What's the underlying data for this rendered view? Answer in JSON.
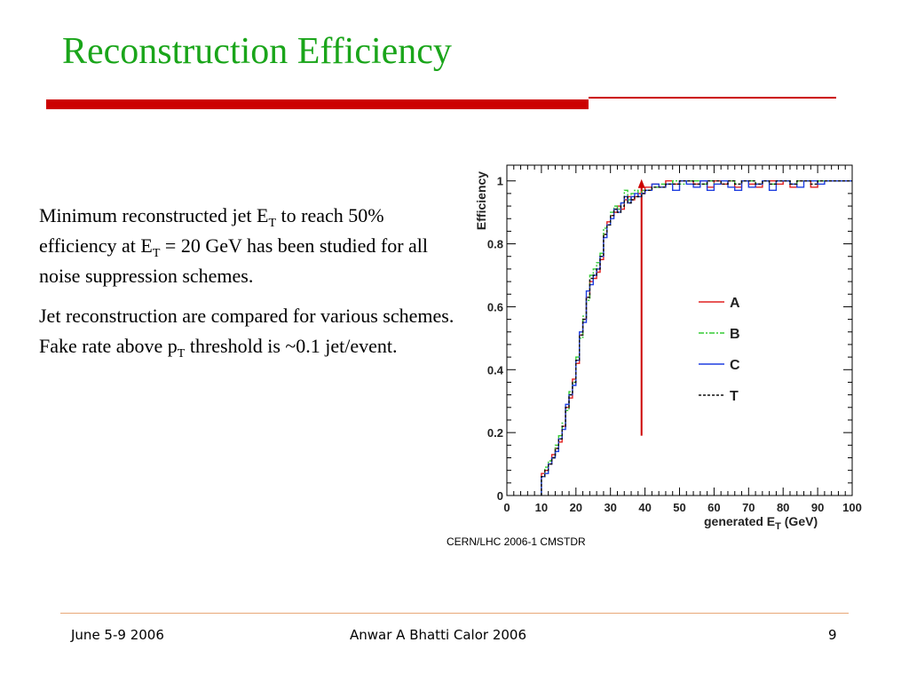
{
  "slide": {
    "title": "Reconstruction Efficiency",
    "paragraph1": {
      "p1": "Minimum reconstructed jet E",
      "s1": "T",
      "p2": " to reach 50% efficiency at E",
      "s2": "T",
      "p3": " = 20 GeV has been studied for all noise suppression schemes."
    },
    "paragraph2": {
      "p1": "Jet reconstruction are compared for various schemes. Fake rate above p",
      "s1": "T",
      "p2": " threshold  is  ~0.1 jet/event."
    },
    "source": "CERN/LHC 2006-1 CMSTDR"
  },
  "footer": {
    "date": "June 5-9 2006",
    "center": "Anwar A Bhatti  Calor 2006",
    "page": "9"
  },
  "colors": {
    "title": "#1aa51a",
    "accent_bar": "#cc0000",
    "footer_line": "#e8a878",
    "series_A": "#e02020",
    "series_B": "#33cc33",
    "series_C": "#1f3fe0",
    "series_T": "#111111",
    "marker": "#cc0000"
  },
  "chart_data": {
    "type": "line",
    "style": "step histogram",
    "xlabel": "generated E",
    "xlabel_sub": "T",
    "xlabel_unit": "(GeV)",
    "ylabel": "Efficiency",
    "xlim": [
      0,
      100
    ],
    "ylim": [
      0,
      1.05
    ],
    "xticks": [
      0,
      10,
      20,
      30,
      40,
      50,
      60,
      70,
      80,
      90,
      100
    ],
    "yticks": [
      0,
      0.2,
      0.4,
      0.6,
      0.8,
      1
    ],
    "legend_position": "right",
    "marker_line": {
      "x": 39,
      "y_from": 0.19,
      "y_to": 1.0
    },
    "series": [
      {
        "name": "A",
        "x": [
          10,
          11,
          12,
          13,
          14,
          15,
          16,
          17,
          18,
          19,
          20,
          21,
          22,
          23,
          24,
          25,
          26,
          27,
          28,
          29,
          30,
          31,
          32,
          33,
          34,
          35,
          36,
          37,
          38,
          39,
          40,
          42,
          44,
          46,
          48,
          50,
          52,
          54,
          56,
          58,
          60,
          62,
          64,
          66,
          68,
          70,
          72,
          74,
          76,
          78,
          80,
          82,
          84,
          86,
          88,
          90,
          92,
          94,
          96,
          98
        ],
        "y": [
          0.07,
          0.08,
          0.1,
          0.13,
          0.15,
          0.17,
          0.22,
          0.28,
          0.31,
          0.37,
          0.42,
          0.51,
          0.56,
          0.63,
          0.68,
          0.69,
          0.71,
          0.75,
          0.83,
          0.87,
          0.89,
          0.9,
          0.92,
          0.91,
          0.94,
          0.95,
          0.94,
          0.95,
          0.96,
          0.96,
          0.98,
          0.99,
          0.98,
          1.0,
          0.99,
          1.0,
          1.0,
          0.99,
          1.0,
          0.98,
          1.0,
          0.99,
          1.0,
          0.98,
          1.0,
          0.99,
          0.98,
          1.0,
          1.0,
          0.99,
          1.0,
          0.98,
          1.0,
          1.0,
          0.98,
          1.0,
          1.0,
          1.0,
          1.0,
          1.0
        ]
      },
      {
        "name": "B",
        "x": [
          10,
          11,
          12,
          13,
          14,
          15,
          16,
          17,
          18,
          19,
          20,
          21,
          22,
          23,
          24,
          25,
          26,
          27,
          28,
          29,
          30,
          31,
          32,
          33,
          34,
          35,
          36,
          37,
          38,
          39,
          40,
          42,
          44,
          46,
          48,
          50,
          52,
          54,
          56,
          58,
          60,
          62,
          64,
          66,
          68,
          70,
          72,
          74,
          76,
          78,
          80,
          82,
          84,
          86,
          88,
          90,
          92,
          94,
          96,
          98
        ],
        "y": [
          0.06,
          0.09,
          0.11,
          0.12,
          0.16,
          0.19,
          0.23,
          0.27,
          0.33,
          0.36,
          0.44,
          0.5,
          0.57,
          0.62,
          0.7,
          0.72,
          0.74,
          0.77,
          0.85,
          0.86,
          0.9,
          0.92,
          0.91,
          0.93,
          0.97,
          0.94,
          0.96,
          0.97,
          0.95,
          0.97,
          0.97,
          0.98,
          0.99,
          0.99,
          1.0,
          0.99,
          1.0,
          1.0,
          0.99,
          1.0,
          0.99,
          1.0,
          1.0,
          0.99,
          1.0,
          1.0,
          0.99,
          1.0,
          0.99,
          1.0,
          1.0,
          0.99,
          1.0,
          1.0,
          1.0,
          1.0,
          1.0,
          1.0,
          1.0,
          1.0
        ]
      },
      {
        "name": "C",
        "x": [
          10,
          11,
          12,
          13,
          14,
          15,
          16,
          17,
          18,
          19,
          20,
          21,
          22,
          23,
          24,
          25,
          26,
          27,
          28,
          29,
          30,
          31,
          32,
          33,
          34,
          35,
          36,
          37,
          38,
          39,
          40,
          42,
          44,
          46,
          48,
          50,
          52,
          54,
          56,
          58,
          60,
          62,
          64,
          66,
          68,
          70,
          72,
          74,
          76,
          78,
          80,
          82,
          84,
          86,
          88,
          90,
          92,
          94,
          96,
          98
        ],
        "y": [
          0.06,
          0.07,
          0.1,
          0.12,
          0.14,
          0.18,
          0.21,
          0.29,
          0.32,
          0.35,
          0.43,
          0.52,
          0.55,
          0.65,
          0.67,
          0.7,
          0.72,
          0.76,
          0.82,
          0.86,
          0.88,
          0.91,
          0.9,
          0.93,
          0.95,
          0.93,
          0.95,
          0.96,
          0.95,
          0.96,
          0.97,
          0.99,
          0.98,
          0.99,
          0.97,
          1.0,
          0.99,
          0.98,
          1.0,
          0.97,
          0.99,
          1.0,
          0.98,
          0.97,
          1.0,
          0.98,
          0.99,
          1.0,
          0.97,
          1.0,
          1.0,
          0.99,
          0.98,
          1.0,
          1.0,
          0.99,
          1.0,
          1.0,
          1.0,
          1.0
        ]
      },
      {
        "name": "T",
        "x": [
          10,
          11,
          12,
          13,
          14,
          15,
          16,
          17,
          18,
          19,
          20,
          21,
          22,
          23,
          24,
          25,
          26,
          27,
          28,
          29,
          30,
          31,
          32,
          33,
          34,
          35,
          36,
          37,
          38,
          39,
          40,
          42,
          44,
          46,
          48,
          50,
          52,
          54,
          56,
          58,
          60,
          62,
          64,
          66,
          68,
          70,
          72,
          74,
          76,
          78,
          80,
          82,
          84,
          86,
          88,
          90,
          92,
          94,
          96,
          98
        ],
        "y": [
          0.06,
          0.08,
          0.1,
          0.12,
          0.15,
          0.18,
          0.22,
          0.28,
          0.32,
          0.36,
          0.43,
          0.51,
          0.56,
          0.63,
          0.69,
          0.7,
          0.72,
          0.76,
          0.83,
          0.86,
          0.89,
          0.91,
          0.9,
          0.92,
          0.95,
          0.93,
          0.94,
          0.95,
          0.95,
          0.96,
          0.97,
          0.98,
          0.98,
          0.99,
          0.99,
          1.0,
          1.0,
          0.99,
          0.99,
          1.0,
          1.0,
          0.99,
          1.0,
          0.99,
          1.0,
          1.0,
          0.99,
          1.0,
          0.99,
          1.0,
          1.0,
          0.99,
          1.0,
          1.0,
          0.99,
          1.0,
          1.0,
          1.0,
          1.0,
          1.0
        ]
      }
    ]
  }
}
